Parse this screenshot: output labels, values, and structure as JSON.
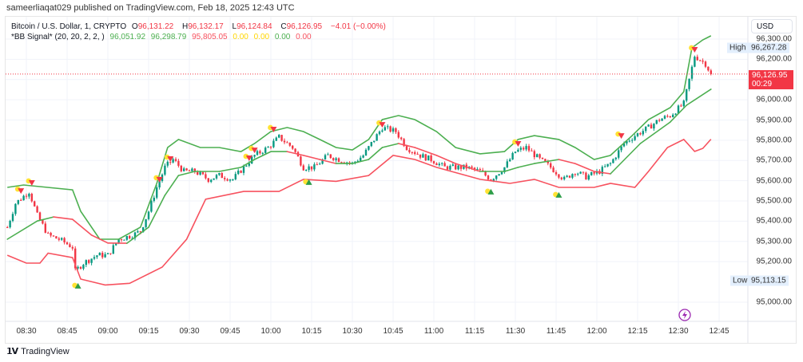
{
  "publisher_line": "sameerliaqat029 published on TradingView.com, Feb 18, 2025 12:43 UTC",
  "legend": {
    "symbol": "Bitcoin / U.S. Dollar, 1, CRYPTO",
    "o_label": "O",
    "o": "96,131.22",
    "h_label": "H",
    "h": "96,132.17",
    "l_label": "L",
    "l": "96,124.84",
    "c_label": "C",
    "c": "96,126.95",
    "change": "−4.01 (−0.00%)",
    "indicator": "*BB Signal* (20, 20, 2, 2, )",
    "ind_values": [
      "96,051.92",
      "96,298.79",
      "95,805.05",
      "0.00",
      "0.00",
      "0.00",
      "0.00"
    ]
  },
  "price_axis": {
    "currency": "USD",
    "ticks": [
      "96,300.00",
      "96,200.00",
      "96,000.00",
      "95,900.00",
      "95,800.00",
      "95,700.00",
      "95,600.00",
      "95,500.00",
      "95,400.00",
      "95,300.00",
      "95,200.00",
      "95,000.00"
    ],
    "tick_values": [
      96300,
      96200,
      96000,
      95900,
      95800,
      95700,
      95600,
      95500,
      95400,
      95300,
      95200,
      95000
    ],
    "high_label": "High",
    "high": "96,267.28",
    "high_value": 96267.28,
    "low_label": "Low",
    "low": "95,113.15",
    "low_value": 95113.15,
    "current": "96,126.95",
    "current_value": 96126.95,
    "countdown": "00:29"
  },
  "time_axis": [
    "08:30",
    "08:45",
    "09:00",
    "09:15",
    "09:30",
    "09:45",
    "10:00",
    "10:15",
    "10:30",
    "10:45",
    "11:00",
    "11:15",
    "11:30",
    "11:45",
    "12:00",
    "12:15",
    "12:30",
    "12:45"
  ],
  "footer": {
    "brand": "TradingView"
  },
  "colors": {
    "up": "#089981",
    "down": "#f23645",
    "band_up": "#4caf50",
    "band_down": "#f7525f",
    "signal_dot": "#ffe234"
  },
  "chart_data": {
    "type": "candlestick",
    "title": "Bitcoin / U.S. Dollar, 1, CRYPTO",
    "x_unit": "minutes after 08:30",
    "ylim": [
      94900,
      96330
    ],
    "close_path": [
      [
        -7,
        95370
      ],
      [
        -4,
        95488
      ],
      [
        1,
        95547
      ],
      [
        4,
        95429
      ],
      [
        8,
        95331
      ],
      [
        12,
        95311
      ],
      [
        17,
        95272
      ],
      [
        18,
        95153
      ],
      [
        21,
        95193
      ],
      [
        26,
        95232
      ],
      [
        30,
        95232
      ],
      [
        34,
        95311
      ],
      [
        39,
        95331
      ],
      [
        42,
        95350
      ],
      [
        45,
        95449
      ],
      [
        48,
        95567
      ],
      [
        51,
        95666
      ],
      [
        54,
        95705
      ],
      [
        58,
        95646
      ],
      [
        62,
        95646
      ],
      [
        67,
        95607
      ],
      [
        71,
        95626
      ],
      [
        76,
        95607
      ],
      [
        80,
        95666
      ],
      [
        84,
        95725
      ],
      [
        89,
        95764
      ],
      [
        93,
        95815
      ],
      [
        98,
        95764
      ],
      [
        102,
        95666
      ],
      [
        106,
        95666
      ],
      [
        111,
        95725
      ],
      [
        115,
        95705
      ],
      [
        120,
        95685
      ],
      [
        124,
        95725
      ],
      [
        127,
        95784
      ],
      [
        131,
        95863
      ],
      [
        136,
        95843
      ],
      [
        140,
        95764
      ],
      [
        145,
        95725
      ],
      [
        149,
        95705
      ],
      [
        154,
        95666
      ],
      [
        158,
        95666
      ],
      [
        162,
        95666
      ],
      [
        167,
        95646
      ],
      [
        171,
        95607
      ],
      [
        176,
        95666
      ],
      [
        180,
        95744
      ],
      [
        184,
        95764
      ],
      [
        189,
        95705
      ],
      [
        193,
        95666
      ],
      [
        198,
        95607
      ],
      [
        202,
        95646
      ],
      [
        206,
        95619
      ],
      [
        211,
        95646
      ],
      [
        215,
        95685
      ],
      [
        220,
        95784
      ],
      [
        224,
        95823
      ],
      [
        229,
        95863
      ],
      [
        233,
        95902
      ],
      [
        237,
        95922
      ],
      [
        242,
        95981
      ],
      [
        244,
        96099
      ],
      [
        246,
        96217
      ],
      [
        248,
        96198
      ],
      [
        250,
        96178
      ],
      [
        252,
        96127
      ]
    ],
    "upper_band": [
      [
        -7,
        95567
      ],
      [
        -1,
        95579
      ],
      [
        17,
        95555
      ],
      [
        20,
        95449
      ],
      [
        27,
        95311
      ],
      [
        34,
        95311
      ],
      [
        42,
        95370
      ],
      [
        48,
        95587
      ],
      [
        52,
        95764
      ],
      [
        56,
        95804
      ],
      [
        64,
        95764
      ],
      [
        71,
        95764
      ],
      [
        79,
        95744
      ],
      [
        84,
        95784
      ],
      [
        90,
        95843
      ],
      [
        96,
        95863
      ],
      [
        102,
        95843
      ],
      [
        108,
        95804
      ],
      [
        114,
        95764
      ],
      [
        120,
        95752
      ],
      [
        126,
        95804
      ],
      [
        131,
        95902
      ],
      [
        137,
        95922
      ],
      [
        143,
        95902
      ],
      [
        151,
        95843
      ],
      [
        158,
        95764
      ],
      [
        167,
        95733
      ],
      [
        176,
        95744
      ],
      [
        181,
        95804
      ],
      [
        187,
        95823
      ],
      [
        196,
        95804
      ],
      [
        202,
        95764
      ],
      [
        209,
        95705
      ],
      [
        215,
        95725
      ],
      [
        223,
        95823
      ],
      [
        229,
        95902
      ],
      [
        237,
        95961
      ],
      [
        242,
        96040
      ],
      [
        245,
        96257
      ],
      [
        249,
        96296
      ],
      [
        252,
        96316
      ]
    ],
    "middle_band": [
      [
        -7,
        95311
      ],
      [
        4,
        95401
      ],
      [
        10,
        95421
      ],
      [
        17,
        95409
      ],
      [
        24,
        95331
      ],
      [
        30,
        95292
      ],
      [
        37,
        95291
      ],
      [
        45,
        95370
      ],
      [
        51,
        95528
      ],
      [
        56,
        95626
      ],
      [
        62,
        95646
      ],
      [
        71,
        95646
      ],
      [
        79,
        95666
      ],
      [
        84,
        95705
      ],
      [
        90,
        95744
      ],
      [
        96,
        95744
      ],
      [
        102,
        95725
      ],
      [
        108,
        95705
      ],
      [
        114,
        95685
      ],
      [
        120,
        95685
      ],
      [
        126,
        95705
      ],
      [
        131,
        95764
      ],
      [
        137,
        95784
      ],
      [
        143,
        95764
      ],
      [
        151,
        95725
      ],
      [
        158,
        95685
      ],
      [
        167,
        95646
      ],
      [
        176,
        95646
      ],
      [
        181,
        95666
      ],
      [
        187,
        95685
      ],
      [
        196,
        95705
      ],
      [
        202,
        95685
      ],
      [
        209,
        95646
      ],
      [
        215,
        95634
      ],
      [
        226,
        95784
      ],
      [
        237,
        95890
      ],
      [
        243,
        95973
      ],
      [
        252,
        96052
      ]
    ],
    "lower_band": [
      [
        -7,
        95232
      ],
      [
        0,
        95193
      ],
      [
        5,
        95193
      ],
      [
        8,
        95242
      ],
      [
        17,
        95220
      ],
      [
        20,
        95114
      ],
      [
        29,
        95085
      ],
      [
        38,
        95093
      ],
      [
        50,
        95173
      ],
      [
        59,
        95311
      ],
      [
        66,
        95509
      ],
      [
        80,
        95547
      ],
      [
        93,
        95547
      ],
      [
        102,
        95607
      ],
      [
        114,
        95597
      ],
      [
        126,
        95626
      ],
      [
        135,
        95725
      ],
      [
        143,
        95705
      ],
      [
        151,
        95666
      ],
      [
        167,
        95607
      ],
      [
        178,
        95587
      ],
      [
        187,
        95607
      ],
      [
        196,
        95567
      ],
      [
        209,
        95567
      ],
      [
        215,
        95587
      ],
      [
        224,
        95567
      ],
      [
        229,
        95646
      ],
      [
        236,
        95764
      ],
      [
        242,
        95804
      ],
      [
        246,
        95745
      ],
      [
        249,
        95760
      ],
      [
        252,
        95805
      ]
    ],
    "sell_signals": [
      [
        -2,
        95547
      ],
      [
        2,
        95587
      ],
      [
        49,
        95603
      ],
      [
        53,
        95705
      ],
      [
        82,
        95709
      ],
      [
        84,
        95748
      ],
      [
        91,
        95851
      ],
      [
        131,
        95874
      ],
      [
        181,
        95780
      ],
      [
        219,
        95819
      ],
      [
        246,
        96245
      ]
    ],
    "buy_signals": [
      [
        19,
        95083
      ],
      [
        104,
        95595
      ],
      [
        171,
        95548
      ],
      [
        196,
        95532
      ]
    ]
  }
}
